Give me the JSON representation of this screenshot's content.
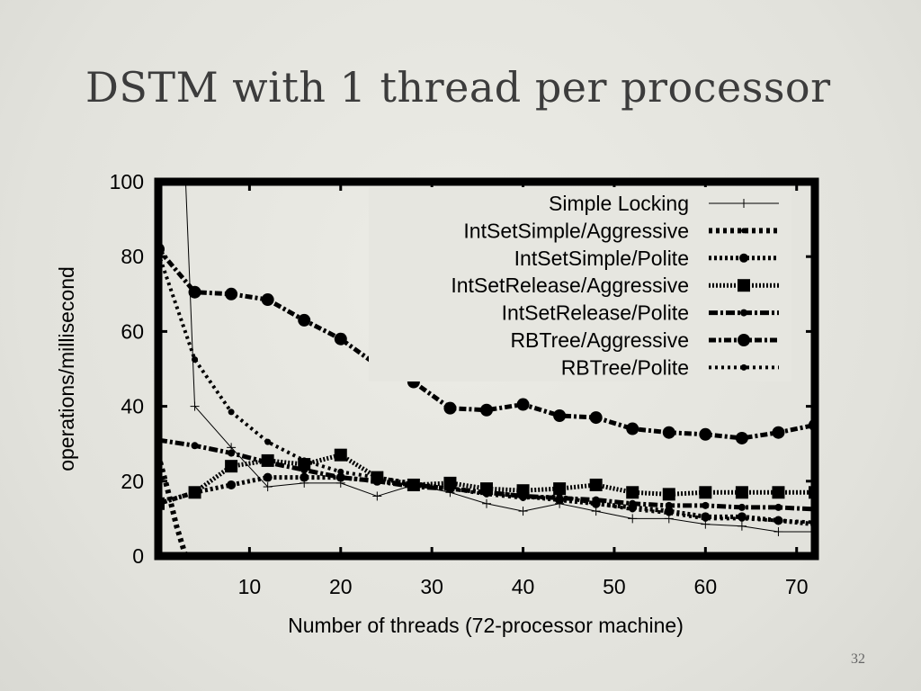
{
  "slide": {
    "title": "DSTM with 1 thread per processor",
    "page_number": "32"
  },
  "chart_data": {
    "type": "line",
    "xlabel": "Number of threads (72-processor machine)",
    "ylabel": "operations/millisecond",
    "xlim": [
      0,
      72
    ],
    "ylim": [
      0,
      100
    ],
    "xticks": [
      10,
      20,
      30,
      40,
      50,
      60,
      70
    ],
    "yticks": [
      0,
      20,
      40,
      60,
      80,
      100
    ],
    "legend_position": "top-right",
    "series": [
      {
        "name": "Simple Locking",
        "style": "thin-plus",
        "x": [
          2,
          3,
          4,
          8,
          12,
          16,
          20,
          24,
          28,
          32,
          36,
          40,
          44,
          48,
          52,
          56,
          60,
          64,
          68,
          72
        ],
        "y": [
          100,
          100,
          40,
          29,
          18.5,
          19.5,
          19.5,
          16,
          19,
          17,
          14,
          12,
          14,
          12,
          10,
          10,
          8.5,
          8,
          6.5,
          6.5
        ]
      },
      {
        "name": "IntSetSimple/Aggressive",
        "style": "heavy-dot",
        "x": [
          0,
          1,
          2,
          3
        ],
        "y": [
          27,
          18,
          8,
          0
        ]
      },
      {
        "name": "IntSetSimple/Polite",
        "style": "dot",
        "x": [
          0,
          4,
          8,
          12,
          16,
          20,
          24,
          28,
          32,
          36,
          40,
          44,
          48,
          52,
          56,
          60,
          64,
          68,
          72
        ],
        "y": [
          14,
          17,
          19,
          21,
          21,
          21,
          20,
          19,
          18,
          17,
          16,
          15,
          14,
          13,
          12,
          10.5,
          10.5,
          9.5,
          8.5
        ]
      },
      {
        "name": "IntSetRelease/Aggressive",
        "style": "square",
        "x": [
          0,
          4,
          8,
          12,
          16,
          20,
          24,
          28,
          32,
          36,
          40,
          44,
          48,
          52,
          56,
          60,
          64,
          68,
          72
        ],
        "y": [
          14,
          17,
          24,
          25.5,
          24.5,
          27,
          21,
          19,
          19.5,
          18,
          17.5,
          18,
          19,
          17,
          16.5,
          17,
          17,
          17,
          17
        ]
      },
      {
        "name": "IntSetRelease/Polite",
        "style": "dashdot",
        "x": [
          0,
          4,
          8,
          12,
          16,
          20,
          24,
          28,
          32,
          36,
          40,
          44,
          48,
          52,
          56,
          60,
          64,
          68,
          72
        ],
        "y": [
          31,
          29.5,
          27.5,
          25,
          23,
          21,
          20,
          18.5,
          18,
          17,
          16,
          15.5,
          15,
          14,
          13.5,
          13.5,
          13,
          13,
          12.5
        ]
      },
      {
        "name": "RBTree/Aggressive",
        "style": "circle",
        "x": [
          0,
          4,
          8,
          12,
          16,
          20,
          24,
          28,
          32,
          36,
          40,
          44,
          48,
          52,
          56,
          60,
          64,
          68,
          72
        ],
        "y": [
          82,
          70.5,
          70,
          68.5,
          63,
          58,
          51,
          46.5,
          39.5,
          39,
          40.5,
          37.5,
          37,
          34,
          33,
          32.5,
          31.5,
          33,
          35
        ]
      },
      {
        "name": "RBTree/Polite",
        "style": "smalldot",
        "x": [
          0,
          4,
          8,
          12,
          16,
          20,
          24,
          28,
          32,
          36,
          40,
          44,
          48,
          52,
          56,
          60,
          64,
          68,
          72
        ],
        "y": [
          81,
          52.5,
          38.5,
          30.5,
          25.5,
          22.5,
          21,
          19.5,
          18,
          16.5,
          15.5,
          16,
          14,
          12.5,
          11.5,
          10,
          10,
          9.5,
          9
        ]
      }
    ]
  }
}
